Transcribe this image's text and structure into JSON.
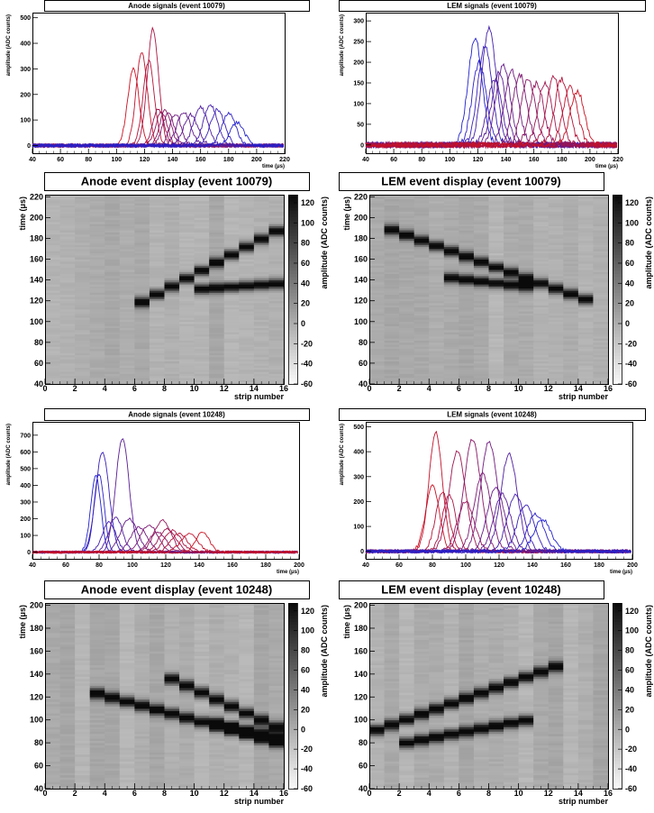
{
  "chart_data": [
    {
      "type": "line",
      "panel": "anode-signals-10079",
      "title": "Anode signals (event 10079)",
      "xlabel": "time (μs)",
      "ylabel": "amplitude (ADC counts)",
      "xlim": [
        40,
        220
      ],
      "ylim": [
        -30,
        520
      ],
      "xticks": [
        40,
        60,
        80,
        100,
        120,
        140,
        160,
        180,
        200,
        220
      ],
      "yticks": [
        0,
        100,
        200,
        300,
        400,
        500
      ],
      "color_start": "#cc1020",
      "color_end": "#2020d0",
      "series": [
        {
          "center": 112,
          "peak": 300,
          "width": 4
        },
        {
          "center": 118,
          "peak": 360,
          "width": 4
        },
        {
          "center": 123,
          "peak": 330,
          "width": 4
        },
        {
          "center": 126,
          "peak": 460,
          "width": 4
        },
        {
          "center": 130,
          "peak": 145,
          "width": 4
        },
        {
          "center": 132,
          "peak": 135,
          "width": 4
        },
        {
          "center": 135,
          "peak": 140,
          "width": 4
        },
        {
          "center": 137,
          "peak": 130,
          "width": 4
        },
        {
          "center": 142,
          "peak": 125,
          "width": 4
        },
        {
          "center": 148,
          "peak": 130,
          "width": 5
        },
        {
          "center": 153,
          "peak": 120,
          "width": 5
        },
        {
          "center": 160,
          "peak": 150,
          "width": 5
        },
        {
          "center": 167,
          "peak": 160,
          "width": 5
        },
        {
          "center": 172,
          "peak": 140,
          "width": 5
        },
        {
          "center": 180,
          "peak": 125,
          "width": 5
        },
        {
          "center": 186,
          "peak": 90,
          "width": 5
        }
      ]
    },
    {
      "type": "line",
      "panel": "lem-signals-10079",
      "title": "LEM signals (event 10079)",
      "xlabel": "time (μs)",
      "ylabel": "amplitude (ADC counts)",
      "xlim": [
        40,
        220
      ],
      "ylim": [
        -20,
        320
      ],
      "xticks": [
        40,
        60,
        80,
        100,
        120,
        140,
        160,
        180,
        200,
        220
      ],
      "yticks": [
        0,
        50,
        100,
        150,
        200,
        250,
        300
      ],
      "color_start": "#2020d0",
      "color_end": "#cc1020",
      "series": [
        {
          "center": 118,
          "peak": 260,
          "width": 5
        },
        {
          "center": 121,
          "peak": 200,
          "width": 5
        },
        {
          "center": 125,
          "peak": 240,
          "width": 5
        },
        {
          "center": 128,
          "peak": 285,
          "width": 5
        },
        {
          "center": 132,
          "peak": 160,
          "width": 5
        },
        {
          "center": 135,
          "peak": 175,
          "width": 5
        },
        {
          "center": 138,
          "peak": 195,
          "width": 5
        },
        {
          "center": 144,
          "peak": 180,
          "width": 5
        },
        {
          "center": 150,
          "peak": 170,
          "width": 5
        },
        {
          "center": 156,
          "peak": 160,
          "width": 5
        },
        {
          "center": 162,
          "peak": 150,
          "width": 5
        },
        {
          "center": 168,
          "peak": 150,
          "width": 5
        },
        {
          "center": 174,
          "peak": 165,
          "width": 5
        },
        {
          "center": 180,
          "peak": 160,
          "width": 5
        },
        {
          "center": 186,
          "peak": 140,
          "width": 5
        },
        {
          "center": 191,
          "peak": 130,
          "width": 5
        }
      ]
    },
    {
      "type": "heatmap",
      "panel": "anode-display-10079",
      "title": "Anode event display (event 10079)",
      "xlabel": "strip number",
      "ylabel": "time (μs)",
      "zlabel": "amplitude (ADC counts)",
      "xlim": [
        0,
        16
      ],
      "ylim": [
        40,
        222
      ],
      "zlim": [
        -60,
        128
      ],
      "xticks": [
        0,
        2,
        4,
        6,
        8,
        10,
        12,
        14,
        16
      ],
      "yticks": [
        40,
        60,
        80,
        100,
        120,
        140,
        160,
        180,
        200,
        220
      ],
      "zticks": [
        -60,
        -40,
        -20,
        0,
        20,
        40,
        60,
        80,
        100,
        120
      ],
      "tracks": [
        {
          "strip_start": 6,
          "strip_end": 16,
          "time_start": 114,
          "time_end": 190
        },
        {
          "strip_start": 10,
          "strip_end": 16,
          "time_start": 130,
          "time_end": 136
        }
      ]
    },
    {
      "type": "heatmap",
      "panel": "lem-display-10079",
      "title": "LEM event display (event 10079)",
      "xlabel": "strip number",
      "ylabel": "time (μs)",
      "zlabel": "amplitude (ADC counts)",
      "xlim": [
        0,
        16
      ],
      "ylim": [
        40,
        222
      ],
      "zlim": [
        -60,
        128
      ],
      "xticks": [
        0,
        2,
        4,
        6,
        8,
        10,
        12,
        14,
        16
      ],
      "yticks": [
        40,
        60,
        80,
        100,
        120,
        140,
        160,
        180,
        200,
        220
      ],
      "zticks": [
        -60,
        -40,
        -20,
        0,
        20,
        40,
        60,
        80,
        100,
        120
      ],
      "tracks": [
        {
          "strip_start": 1,
          "strip_end": 15,
          "time_start": 190,
          "time_end": 118
        },
        {
          "strip_start": 5,
          "strip_end": 11,
          "time_start": 142,
          "time_end": 132
        }
      ]
    },
    {
      "type": "line",
      "panel": "anode-signals-10248",
      "title": "Anode signals (event 10248)",
      "xlabel": "time (μs)",
      "ylabel": "amplitude (ADC counts)",
      "xlim": [
        40,
        200
      ],
      "ylim": [
        -40,
        780
      ],
      "xticks": [
        40,
        60,
        80,
        100,
        120,
        140,
        160,
        180,
        200
      ],
      "yticks": [
        0,
        100,
        200,
        300,
        400,
        500,
        600,
        700
      ],
      "color_start": "#2020d0",
      "color_end": "#cc1020",
      "series": [
        {
          "center": 78,
          "peak": 460,
          "width": 3
        },
        {
          "center": 80,
          "peak": 470,
          "width": 3
        },
        {
          "center": 82,
          "peak": 600,
          "width": 4
        },
        {
          "center": 86,
          "peak": 180,
          "width": 4
        },
        {
          "center": 90,
          "peak": 210,
          "width": 4
        },
        {
          "center": 94,
          "peak": 680,
          "width": 4
        },
        {
          "center": 98,
          "peak": 200,
          "width": 5
        },
        {
          "center": 104,
          "peak": 150,
          "width": 5
        },
        {
          "center": 110,
          "peak": 165,
          "width": 5
        },
        {
          "center": 115,
          "peak": 120,
          "width": 5
        },
        {
          "center": 118,
          "peak": 190,
          "width": 5
        },
        {
          "center": 121,
          "peak": 140,
          "width": 5
        },
        {
          "center": 124,
          "peak": 130,
          "width": 5
        },
        {
          "center": 128,
          "peak": 110,
          "width": 5
        },
        {
          "center": 134,
          "peak": 110,
          "width": 5
        },
        {
          "center": 142,
          "peak": 120,
          "width": 4
        }
      ]
    },
    {
      "type": "line",
      "panel": "lem-signals-10248",
      "title": "LEM signals (event 10248)",
      "xlabel": "time (μs)",
      "ylabel": "amplitude (ADC counts)",
      "xlim": [
        40,
        200
      ],
      "ylim": [
        -30,
        520
      ],
      "xticks": [
        40,
        60,
        80,
        100,
        120,
        140,
        160,
        180,
        200
      ],
      "yticks": [
        0,
        100,
        200,
        300,
        400,
        500
      ],
      "color_start": "#cc1020",
      "color_end": "#2020d0",
      "series": [
        {
          "center": 80,
          "peak": 270,
          "width": 4
        },
        {
          "center": 82,
          "peak": 480,
          "width": 4
        },
        {
          "center": 86,
          "peak": 240,
          "width": 4
        },
        {
          "center": 90,
          "peak": 230,
          "width": 4
        },
        {
          "center": 95,
          "peak": 400,
          "width": 5
        },
        {
          "center": 100,
          "peak": 200,
          "width": 5
        },
        {
          "center": 104,
          "peak": 450,
          "width": 5
        },
        {
          "center": 110,
          "peak": 310,
          "width": 5
        },
        {
          "center": 114,
          "peak": 440,
          "width": 5
        },
        {
          "center": 118,
          "peak": 260,
          "width": 5
        },
        {
          "center": 122,
          "peak": 230,
          "width": 5
        },
        {
          "center": 126,
          "peak": 390,
          "width": 5
        },
        {
          "center": 130,
          "peak": 230,
          "width": 5
        },
        {
          "center": 136,
          "peak": 190,
          "width": 5
        },
        {
          "center": 142,
          "peak": 150,
          "width": 5
        },
        {
          "center": 146,
          "peak": 130,
          "width": 5
        }
      ]
    },
    {
      "type": "heatmap",
      "panel": "anode-display-10248",
      "title": "Anode event display (event 10248)",
      "xlabel": "strip number",
      "ylabel": "time (μs)",
      "zlabel": "amplitude (ADC counts)",
      "xlim": [
        0,
        16
      ],
      "ylim": [
        40,
        202
      ],
      "zlim": [
        -60,
        128
      ],
      "xticks": [
        0,
        2,
        4,
        6,
        8,
        10,
        12,
        14,
        16
      ],
      "yticks": [
        40,
        60,
        80,
        100,
        120,
        140,
        160,
        180,
        200
      ],
      "zticks": [
        -60,
        -40,
        -20,
        0,
        20,
        40,
        60,
        80,
        100,
        120
      ],
      "tracks": [
        {
          "strip_start": 3,
          "strip_end": 16,
          "time_start": 124,
          "time_end": 78
        },
        {
          "strip_start": 8,
          "strip_end": 16,
          "time_start": 138,
          "time_end": 90
        },
        {
          "strip_start": 11,
          "strip_end": 16,
          "time_start": 98,
          "time_end": 82
        }
      ]
    },
    {
      "type": "heatmap",
      "panel": "lem-display-10248",
      "title": "LEM event display (event 10248)",
      "xlabel": "strip number",
      "ylabel": "time (μs)",
      "zlabel": "amplitude (ADC counts)",
      "xlim": [
        0,
        16
      ],
      "ylim": [
        40,
        202
      ],
      "zlim": [
        -60,
        128
      ],
      "xticks": [
        0,
        2,
        4,
        6,
        8,
        10,
        12,
        14,
        16
      ],
      "yticks": [
        40,
        60,
        80,
        100,
        120,
        140,
        160,
        180,
        200
      ],
      "zticks": [
        -60,
        -40,
        -20,
        0,
        20,
        40,
        60,
        80,
        100,
        120
      ],
      "tracks": [
        {
          "strip_start": 0,
          "strip_end": 13,
          "time_start": 88,
          "time_end": 148
        },
        {
          "strip_start": 2,
          "strip_end": 11,
          "time_start": 78,
          "time_end": 100
        }
      ]
    }
  ]
}
